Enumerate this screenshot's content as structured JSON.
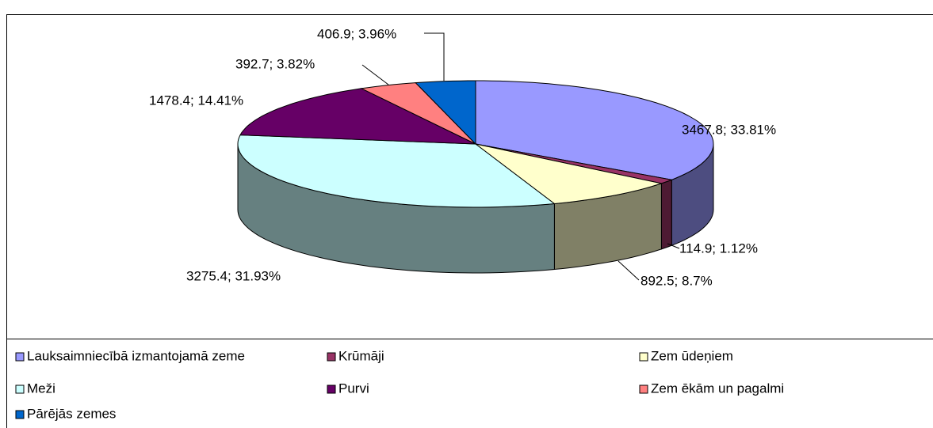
{
  "chart_data": {
    "type": "pie3d",
    "categories": [
      "Lauksaimniecībā izmantojamā zeme",
      "Krūmāji",
      "Zem ūdeņiem",
      "Meži",
      "Purvi",
      "Zem ēkām un pagalmi",
      "Pārējās zemes"
    ],
    "values": [
      3467.8,
      114.9,
      892.5,
      3275.4,
      1478.4,
      392.7,
      406.9
    ],
    "value_labels": [
      "3467.8; 33.81%",
      "114.9; 1.12%",
      "892.5; 8.7%",
      "3275.4; 31.93%",
      "1478.4; 14.41%",
      "392.7; 3.82%",
      "406.9; 3.96%"
    ],
    "colors": [
      "#9999ff",
      "#993366",
      "#ffffcc",
      "#ccffff",
      "#660066",
      "#ff8080",
      "#0066cc"
    ],
    "legend": "bottom"
  }
}
